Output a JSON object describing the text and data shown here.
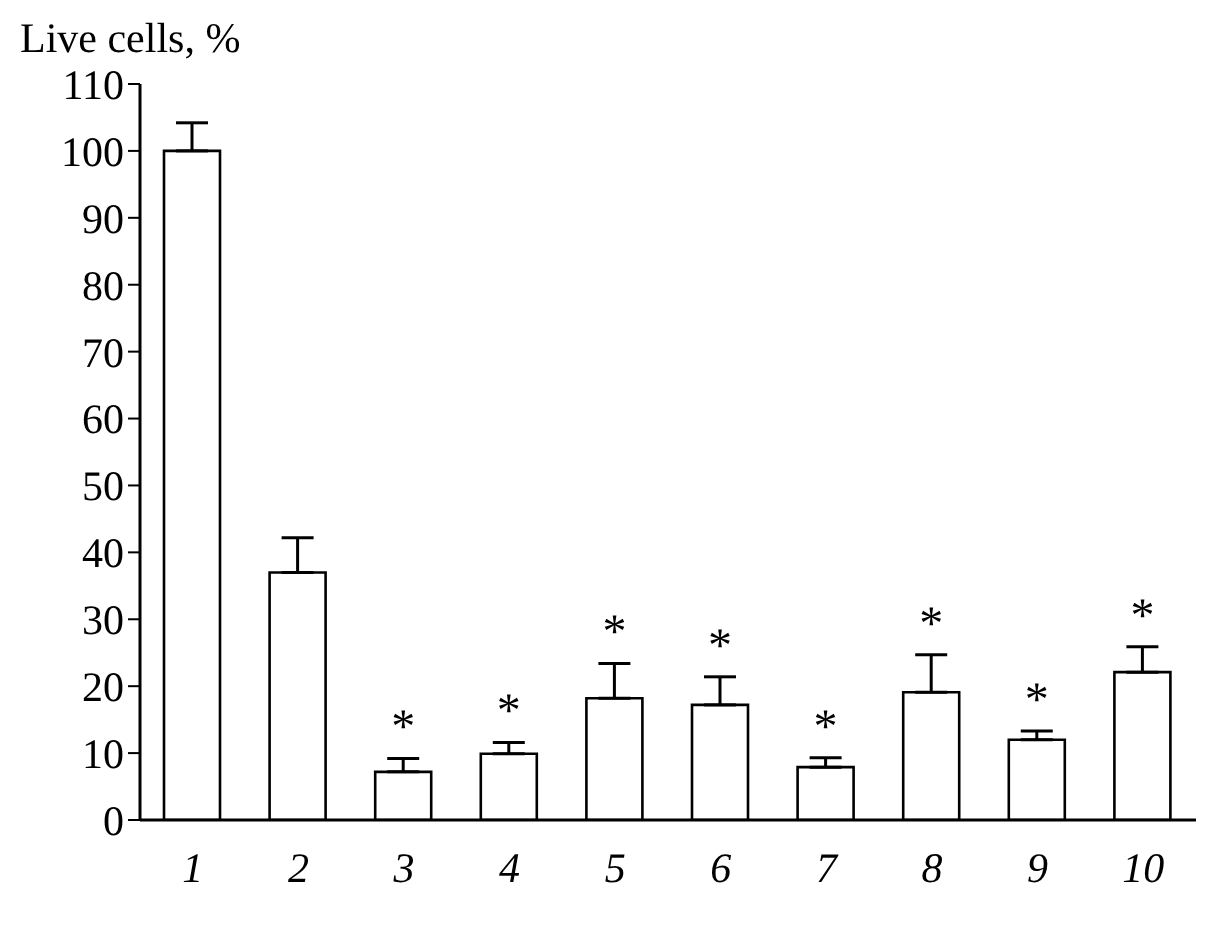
{
  "chart_data": {
    "type": "bar",
    "ylabel": "Live cells, %",
    "categories": [
      "1",
      "2",
      "3",
      "4",
      "5",
      "6",
      "7",
      "8",
      "9",
      "10"
    ],
    "values": [
      100,
      37,
      7.2,
      9.9,
      18.2,
      17.2,
      7.9,
      19.1,
      12,
      22.1
    ],
    "errors": [
      [
        100,
        104.2
      ],
      [
        37,
        42.2
      ],
      [
        7.2,
        9.2
      ],
      [
        9.9,
        11.6
      ],
      [
        18.2,
        23.4
      ],
      [
        17.2,
        21.4
      ],
      [
        7.9,
        9.3
      ],
      [
        19.1,
        24.7
      ],
      [
        12,
        13.3
      ],
      [
        22.1,
        25.9
      ]
    ],
    "value_labels": [
      null,
      null,
      "*",
      "*",
      "*",
      "*",
      "*",
      "*",
      "*",
      "*"
    ],
    "color": "#ffffff",
    "ylim": [
      0,
      110
    ],
    "yticks": [
      0,
      10,
      20,
      30,
      40,
      50,
      60,
      70,
      80,
      90,
      100,
      110
    ],
    "grid": false,
    "legend": false
  }
}
